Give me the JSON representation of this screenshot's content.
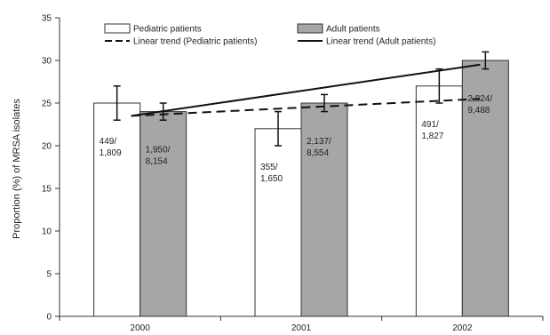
{
  "chart_data": {
    "type": "bar",
    "title": "",
    "xlabel": "",
    "ylabel": "Proportion (%) of MRSA isolates",
    "ylim": [
      0,
      35
    ],
    "yticks": [
      0,
      5,
      10,
      15,
      20,
      25,
      30,
      35
    ],
    "categories": [
      "2000",
      "2001",
      "2002"
    ],
    "legend_position": "top",
    "grid": false,
    "series": [
      {
        "name": "Pediatric patients",
        "values": [
          25,
          22,
          27
        ],
        "error_low": [
          23,
          20,
          25
        ],
        "error_high": [
          27,
          24,
          29
        ],
        "labels": [
          [
            "449/",
            "1,809"
          ],
          [
            "355/",
            "1,650"
          ],
          [
            "491/",
            "1,827"
          ]
        ],
        "color": "#ffffff"
      },
      {
        "name": "Adult patients",
        "values": [
          24,
          25,
          30
        ],
        "error_low": [
          23,
          24,
          29
        ],
        "error_high": [
          25,
          26,
          31
        ],
        "labels": [
          [
            "1,950/",
            "8,154"
          ],
          [
            "2,137/",
            "8,554"
          ],
          [
            "2,824/",
            "9,488"
          ]
        ],
        "color": "#a6a6a6"
      }
    ],
    "trends": [
      {
        "name": "Linear trend (Pediatric patients)",
        "style": "dashed",
        "start": 23.5,
        "end": 25.5
      },
      {
        "name": "Linear trend (Adult patients)",
        "style": "solid",
        "start": 23.5,
        "end": 29.5
      }
    ]
  }
}
